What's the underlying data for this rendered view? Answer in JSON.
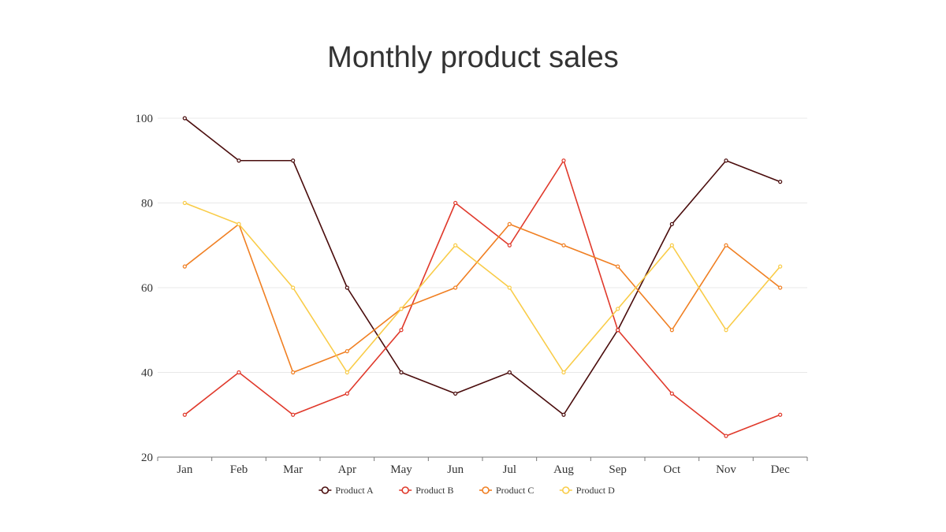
{
  "chart_data": {
    "type": "line",
    "title": "Monthly product sales",
    "xlabel": "",
    "ylabel": "",
    "categories": [
      "Jan",
      "Feb",
      "Mar",
      "Apr",
      "May",
      "Jun",
      "Jul",
      "Aug",
      "Sep",
      "Oct",
      "Nov",
      "Dec"
    ],
    "ylim": [
      20,
      100
    ],
    "yticks": [
      20,
      40,
      60,
      80,
      100
    ],
    "grid": true,
    "legend_position": "bottom",
    "series": [
      {
        "name": "Product A",
        "color": "#4a0c0c",
        "values": [
          100,
          90,
          90,
          60,
          40,
          35,
          40,
          30,
          50,
          75,
          90,
          85
        ]
      },
      {
        "name": "Product B",
        "color": "#e0392b",
        "values": [
          30,
          40,
          30,
          35,
          50,
          80,
          70,
          90,
          50,
          35,
          25,
          30
        ]
      },
      {
        "name": "Product C",
        "color": "#f07f22",
        "values": [
          65,
          75,
          40,
          45,
          55,
          60,
          75,
          70,
          65,
          50,
          70,
          60
        ]
      },
      {
        "name": "Product D",
        "color": "#f9cc48",
        "values": [
          80,
          75,
          60,
          40,
          55,
          70,
          60,
          40,
          55,
          70,
          50,
          65
        ]
      }
    ]
  }
}
